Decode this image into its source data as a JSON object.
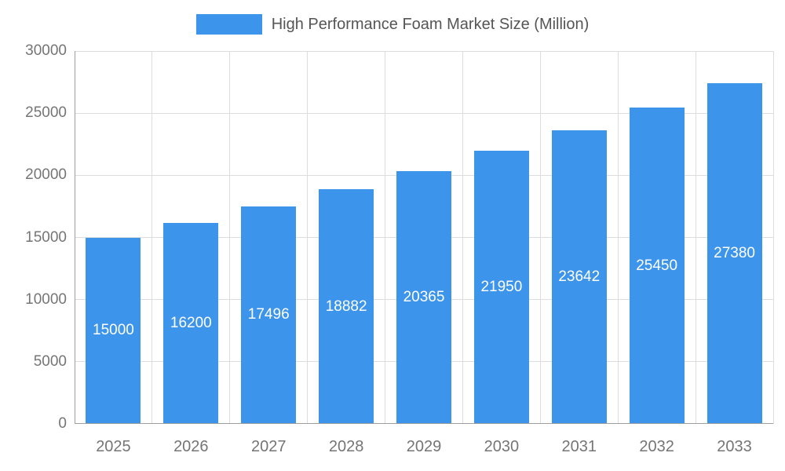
{
  "chart_data": {
    "type": "bar",
    "title": "High Performance Foam Market Size (Million)",
    "categories": [
      "2025",
      "2026",
      "2027",
      "2028",
      "2029",
      "2030",
      "2031",
      "2032",
      "2033"
    ],
    "series": [
      {
        "name": "High Performance Foam Market Size (Million)",
        "values": [
          15000,
          16200,
          17496,
          18882,
          20365,
          21950,
          23642,
          25450,
          27380
        ]
      }
    ],
    "xlabel": "",
    "ylabel": "",
    "ylim": [
      0,
      30000
    ],
    "yticks": [
      0,
      5000,
      10000,
      15000,
      20000,
      25000,
      30000
    ],
    "grid": true,
    "legend_position": "top",
    "bar_color": "#3D94EB",
    "bar_label_color": "#ffffff",
    "axis_text_color": "#757575",
    "gridline_color": "#dddddd"
  }
}
